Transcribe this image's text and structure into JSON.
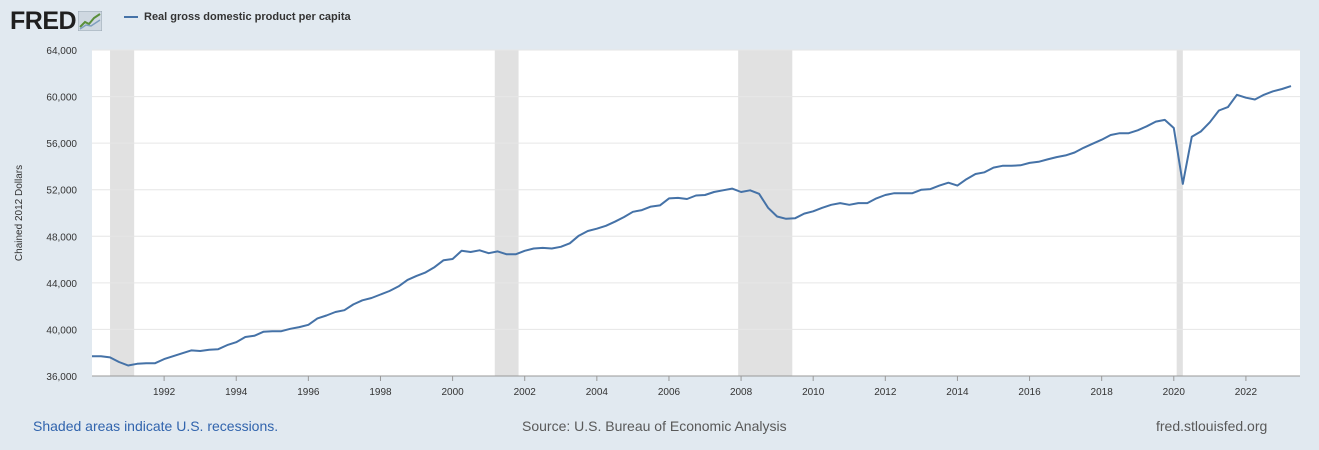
{
  "header": {
    "logo_text": "FRED",
    "logo_icon": "chart-icon",
    "legend_label": "Real gross domestic product per capita"
  },
  "footer": {
    "recession_note": "Shaded areas indicate U.S. recessions.",
    "source": "Source: U.S. Bureau of Economic Analysis",
    "site": "fred.stlouisfed.org"
  },
  "colors": {
    "background": "#e1e9f0",
    "plot_background": "#ffffff",
    "line": "#4572a7",
    "recession": "#e1e1e1",
    "grid": "#e6e6e6",
    "link": "#3164ad"
  },
  "chart_data": {
    "type": "line",
    "ylabel": "Chained 2012 Dollars",
    "xlabel": "",
    "xlim": [
      1990.0,
      2023.5
    ],
    "ylim": [
      36000,
      64000
    ],
    "y_ticks": [
      36000,
      40000,
      44000,
      48000,
      52000,
      56000,
      60000,
      64000
    ],
    "y_tick_labels": [
      "36,000",
      "40,000",
      "44,000",
      "48,000",
      "52,000",
      "56,000",
      "60,000",
      "64,000"
    ],
    "x_ticks": [
      1992,
      1994,
      1996,
      1998,
      2000,
      2002,
      2004,
      2006,
      2008,
      2010,
      2012,
      2014,
      2016,
      2018,
      2020,
      2022
    ],
    "x_tick_labels": [
      "1992",
      "1994",
      "1996",
      "1998",
      "2000",
      "2002",
      "2004",
      "2006",
      "2008",
      "2010",
      "2012",
      "2014",
      "2016",
      "2018",
      "2020",
      "2022"
    ],
    "grid": "horizontal",
    "legend_position": "top-left",
    "recessions": [
      [
        1990.5,
        1991.17
      ],
      [
        2001.17,
        2001.83
      ],
      [
        2007.92,
        2009.42
      ],
      [
        2020.08,
        2020.25
      ]
    ],
    "series": [
      {
        "name": "Real gross domestic product per capita",
        "x": [
          1990.0,
          1990.25,
          1990.5,
          1990.75,
          1991.0,
          1991.25,
          1991.5,
          1991.75,
          1992.0,
          1992.25,
          1992.5,
          1992.75,
          1993.0,
          1993.25,
          1993.5,
          1993.75,
          1994.0,
          1994.25,
          1994.5,
          1994.75,
          1995.0,
          1995.25,
          1995.5,
          1995.75,
          1996.0,
          1996.25,
          1996.5,
          1996.75,
          1997.0,
          1997.25,
          1997.5,
          1997.75,
          1998.0,
          1998.25,
          1998.5,
          1998.75,
          1999.0,
          1999.25,
          1999.5,
          1999.75,
          2000.0,
          2000.25,
          2000.5,
          2000.75,
          2001.0,
          2001.25,
          2001.5,
          2001.75,
          2002.0,
          2002.25,
          2002.5,
          2002.75,
          2003.0,
          2003.25,
          2003.5,
          2003.75,
          2004.0,
          2004.25,
          2004.5,
          2004.75,
          2005.0,
          2005.25,
          2005.5,
          2005.75,
          2006.0,
          2006.25,
          2006.5,
          2006.75,
          2007.0,
          2007.25,
          2007.5,
          2007.75,
          2008.0,
          2008.25,
          2008.5,
          2008.75,
          2009.0,
          2009.25,
          2009.5,
          2009.75,
          2010.0,
          2010.25,
          2010.5,
          2010.75,
          2011.0,
          2011.25,
          2011.5,
          2011.75,
          2012.0,
          2012.25,
          2012.5,
          2012.75,
          2013.0,
          2013.25,
          2013.5,
          2013.75,
          2014.0,
          2014.25,
          2014.5,
          2014.75,
          2015.0,
          2015.25,
          2015.5,
          2015.75,
          2016.0,
          2016.25,
          2016.5,
          2016.75,
          2017.0,
          2017.25,
          2017.5,
          2017.75,
          2018.0,
          2018.25,
          2018.5,
          2018.75,
          2019.0,
          2019.25,
          2019.5,
          2019.75,
          2020.0,
          2020.25,
          2020.5,
          2020.75,
          2021.0,
          2021.25,
          2021.5,
          2021.75,
          2022.0,
          2022.25,
          2022.5,
          2022.75,
          2023.0,
          2023.25
        ],
        "values": [
          37700,
          37700,
          37600,
          37200,
          36900,
          37050,
          37100,
          37100,
          37450,
          37700,
          37950,
          38200,
          38150,
          38250,
          38300,
          38650,
          38900,
          39350,
          39450,
          39800,
          39850,
          39850,
          40050,
          40200,
          40400,
          40950,
          41200,
          41500,
          41650,
          42150,
          42500,
          42700,
          43000,
          43300,
          43700,
          44250,
          44600,
          44900,
          45350,
          45950,
          46050,
          46750,
          46650,
          46800,
          46550,
          46700,
          46450,
          46450,
          46750,
          46950,
          47000,
          46950,
          47100,
          47400,
          48050,
          48450,
          48650,
          48900,
          49250,
          49650,
          50100,
          50250,
          50550,
          50650,
          51250,
          51300,
          51200,
          51500,
          51550,
          51800,
          51950,
          52100,
          51800,
          51950,
          51650,
          50450,
          49700,
          49500,
          49550,
          49950,
          50150,
          50450,
          50700,
          50850,
          50700,
          50850,
          50850,
          51250,
          51550,
          51700,
          51700,
          51700,
          52000,
          52050,
          52350,
          52600,
          52350,
          52900,
          53350,
          53500,
          53900,
          54050,
          54050,
          54100,
          54300,
          54400,
          54600,
          54800,
          54950,
          55200,
          55600,
          55950,
          56300,
          56700,
          56850,
          56850,
          57100,
          57450,
          57850,
          58000,
          57300,
          52500,
          56550,
          57000,
          57800,
          58800,
          59100,
          60150,
          59900,
          59750,
          60150,
          60450,
          60650,
          60900
        ]
      }
    ]
  }
}
